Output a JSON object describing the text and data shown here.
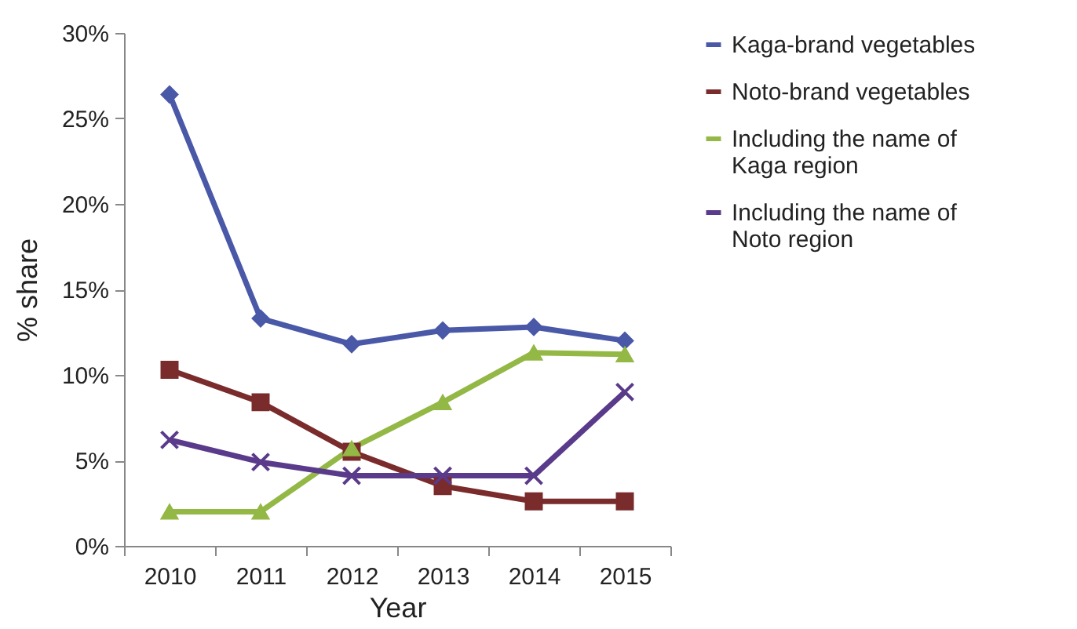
{
  "chart_data": {
    "type": "line",
    "xlabel": "Year",
    "ylabel": "% share",
    "categories": [
      "2010",
      "2011",
      "2012",
      "2013",
      "2014",
      "2015"
    ],
    "series": [
      {
        "name": "Kaga-brand vegetables",
        "color": "#4a58a8",
        "marker": "diamond",
        "values": [
          26.4,
          13.3,
          11.8,
          12.6,
          12.8,
          12.0
        ]
      },
      {
        "name": "Noto-brand vegetables",
        "color": "#7a2b2b",
        "marker": "square",
        "values": [
          10.3,
          8.4,
          5.5,
          3.5,
          2.6,
          2.6
        ]
      },
      {
        "name": "Including the name of Kaga region",
        "color": "#93b845",
        "marker": "triangle",
        "values": [
          2.0,
          2.0,
          5.7,
          8.4,
          11.3,
          11.2
        ]
      },
      {
        "name": "Including the name of Noto region",
        "color": "#5a3a8a",
        "marker": "cross",
        "values": [
          6.2,
          4.9,
          4.1,
          4.1,
          4.1,
          9.0
        ]
      }
    ],
    "ylim": [
      0,
      30
    ],
    "yticks": [
      {
        "value": 0,
        "label": "0%"
      },
      {
        "value": 5,
        "label": "5%"
      },
      {
        "value": 10,
        "label": "10%"
      },
      {
        "value": 15,
        "label": "15%"
      },
      {
        "value": 20,
        "label": "20%"
      },
      {
        "value": 25,
        "label": "25%"
      },
      {
        "value": 30,
        "label": "30%"
      }
    ],
    "grid": false,
    "legend": "right",
    "line_style": "solid"
  }
}
